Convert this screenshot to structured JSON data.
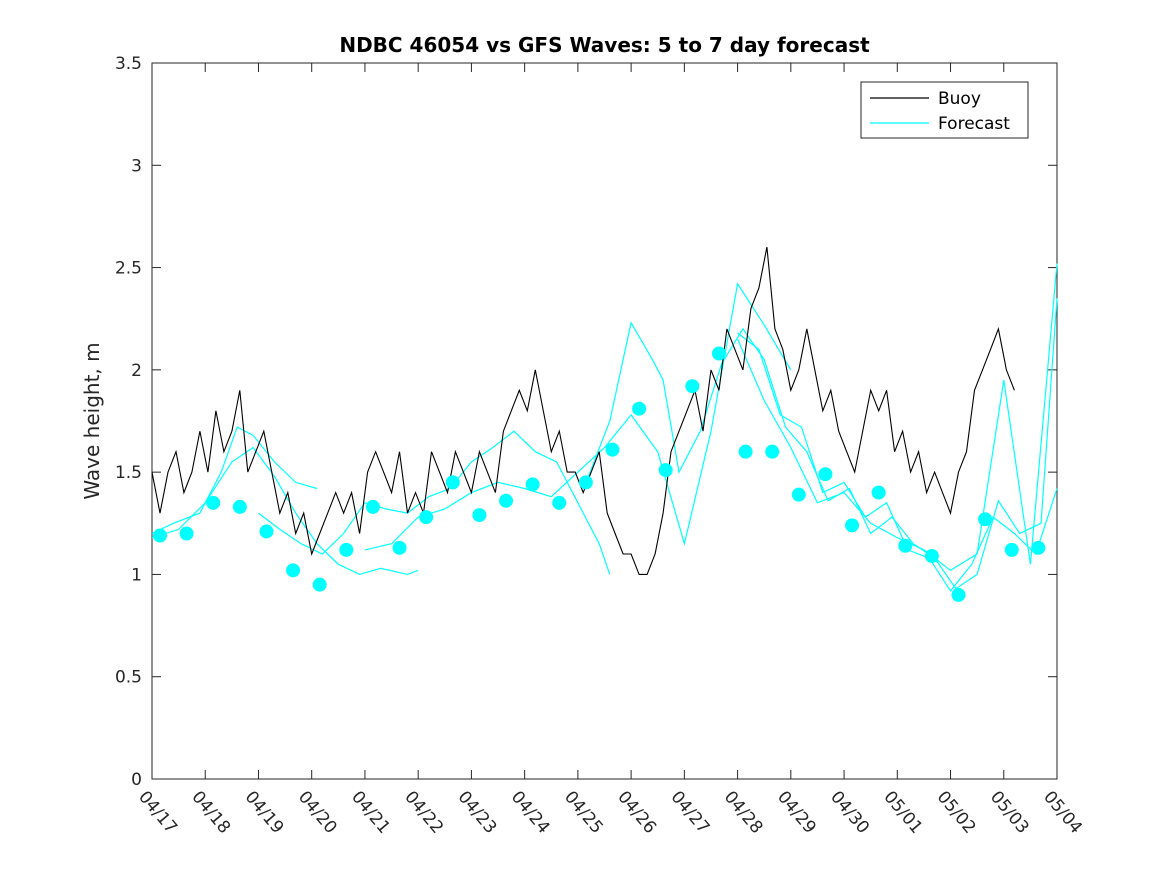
{
  "chart_data": {
    "type": "line",
    "title": "NDBC 46054 vs GFS Waves: 5 to 7 day forecast",
    "xlabel": "",
    "ylabel": "Wave height, m",
    "xlim": [
      0,
      17
    ],
    "ylim": [
      0,
      3.5
    ],
    "grid": false,
    "legend_position": "top-right",
    "colors": {
      "buoy": "#000000",
      "forecast": "#00ffff",
      "axis": "#262626"
    },
    "x_tick_labels": [
      "04/17",
      "04/18",
      "04/19",
      "04/20",
      "04/21",
      "04/22",
      "04/23",
      "04/24",
      "04/25",
      "04/26",
      "04/27",
      "04/28",
      "04/29",
      "04/30",
      "05/01",
      "05/02",
      "05/03",
      "05/04"
    ],
    "y_ticks": [
      0,
      0.5,
      1,
      1.5,
      2,
      2.5,
      3,
      3.5
    ],
    "y_tick_labels": [
      "0",
      "0.5",
      "1",
      "1.5",
      "2",
      "2.5",
      "3",
      "3.5"
    ],
    "series": [
      {
        "name": "Buoy",
        "x": [
          0,
          0.15,
          0.3,
          0.45,
          0.6,
          0.75,
          0.9,
          1.05,
          1.2,
          1.35,
          1.5,
          1.65,
          1.8,
          1.95,
          2.1,
          2.25,
          2.4,
          2.55,
          2.7,
          2.85,
          3.0,
          3.15,
          3.3,
          3.45,
          3.6,
          3.75,
          3.9,
          4.05,
          4.2,
          4.35,
          4.5,
          4.65,
          4.8,
          4.95,
          5.1,
          5.25,
          5.4,
          5.55,
          5.7,
          5.85,
          6.0,
          6.15,
          6.3,
          6.45,
          6.6,
          6.75,
          6.9,
          7.05,
          7.2,
          7.35,
          7.5,
          7.65,
          7.8,
          7.95,
          8.1,
          8.25,
          8.4,
          8.55,
          8.7,
          8.85,
          9.0,
          9.15,
          9.3,
          9.45,
          9.6,
          9.75,
          9.9,
          10.05,
          10.2,
          10.35,
          10.5,
          10.65,
          10.8,
          10.95,
          11.1,
          11.25,
          11.4,
          11.55,
          11.7,
          11.85,
          12.0,
          12.15,
          12.3,
          12.45,
          12.6,
          12.75,
          12.9,
          13.05,
          13.2,
          13.35,
          13.5,
          13.65,
          13.8,
          13.95,
          14.1,
          14.25,
          14.4,
          14.55,
          14.7,
          14.85,
          15.0,
          15.15,
          15.3,
          15.45,
          15.6,
          15.75,
          15.9,
          16.05,
          16.2
        ],
        "values": [
          1.5,
          1.3,
          1.5,
          1.6,
          1.4,
          1.5,
          1.7,
          1.5,
          1.8,
          1.6,
          1.7,
          1.9,
          1.5,
          1.6,
          1.7,
          1.5,
          1.3,
          1.4,
          1.2,
          1.3,
          1.1,
          1.2,
          1.3,
          1.4,
          1.3,
          1.4,
          1.2,
          1.5,
          1.6,
          1.5,
          1.4,
          1.6,
          1.3,
          1.4,
          1.3,
          1.6,
          1.5,
          1.4,
          1.6,
          1.5,
          1.4,
          1.6,
          1.5,
          1.4,
          1.7,
          1.8,
          1.9,
          1.8,
          2.0,
          1.8,
          1.6,
          1.7,
          1.5,
          1.5,
          1.4,
          1.5,
          1.6,
          1.3,
          1.2,
          1.1,
          1.1,
          1.0,
          1.0,
          1.1,
          1.3,
          1.6,
          1.7,
          1.8,
          1.9,
          1.7,
          2.0,
          1.9,
          2.2,
          2.1,
          2.0,
          2.3,
          2.4,
          2.6,
          2.2,
          2.1,
          1.9,
          2.0,
          2.2,
          2.0,
          1.8,
          1.9,
          1.7,
          1.6,
          1.5,
          1.7,
          1.9,
          1.8,
          1.9,
          1.6,
          1.7,
          1.5,
          1.6,
          1.4,
          1.5,
          1.4,
          1.3,
          1.5,
          1.6,
          1.9,
          2.0,
          2.1,
          2.2,
          2.0,
          1.9
        ]
      },
      {
        "name": "Forecast",
        "dot_x": [
          0.15,
          0.65,
          1.15,
          1.65,
          2.15,
          2.65,
          3.15,
          3.65,
          4.15,
          4.65,
          5.15,
          5.65,
          6.15,
          6.65,
          7.15,
          7.65,
          8.15,
          8.65,
          9.15,
          9.65,
          10.15,
          10.65,
          11.15,
          11.65,
          12.15,
          12.65,
          13.15,
          13.65,
          14.15,
          14.65,
          15.15,
          15.65,
          16.15,
          16.65
        ],
        "dot_values": [
          1.19,
          1.2,
          1.35,
          1.33,
          1.21,
          1.02,
          0.95,
          1.12,
          1.33,
          1.13,
          1.28,
          1.45,
          1.29,
          1.36,
          1.44,
          1.35,
          1.45,
          1.61,
          1.81,
          1.51,
          1.92,
          2.08,
          1.6,
          1.6,
          1.39,
          1.49,
          1.24,
          1.4,
          1.14,
          1.09,
          0.9,
          1.27,
          1.12,
          1.13
        ],
        "runs": [
          {
            "x": [
              0,
              0.4,
              0.9,
              1.3,
              1.6,
              1.9,
              2.3,
              2.7,
              3.1
            ],
            "values": [
              1.2,
              1.25,
              1.3,
              1.5,
              1.72,
              1.68,
              1.55,
              1.45,
              1.42
            ]
          },
          {
            "x": [
              0,
              0.5,
              1.0,
              1.5,
              1.9,
              2.3,
              2.7,
              3.1,
              3.5,
              3.9,
              4.3,
              4.8,
              5.0
            ],
            "values": [
              1.18,
              1.22,
              1.35,
              1.55,
              1.62,
              1.48,
              1.3,
              1.15,
              1.05,
              1.0,
              1.03,
              1.0,
              1.02
            ]
          },
          {
            "x": [
              2.0,
              2.4,
              2.8,
              3.2,
              3.6,
              4.0,
              4.4,
              4.8,
              5.2,
              5.6,
              6.0,
              6.4,
              6.8,
              7.2,
              7.6,
              8.0,
              8.4,
              8.6
            ],
            "values": [
              1.3,
              1.22,
              1.15,
              1.1,
              1.2,
              1.35,
              1.32,
              1.3,
              1.38,
              1.42,
              1.55,
              1.62,
              1.7,
              1.6,
              1.55,
              1.35,
              1.15,
              1.0
            ]
          },
          {
            "x": [
              4.0,
              4.5,
              5.0,
              5.5,
              6.0,
              6.5,
              7.0,
              7.5,
              8.0,
              8.5,
              9.0,
              9.5,
              10.0,
              10.5,
              11.0,
              11.5,
              12.0
            ],
            "values": [
              1.12,
              1.15,
              1.28,
              1.32,
              1.4,
              1.45,
              1.42,
              1.38,
              1.5,
              1.62,
              1.78,
              1.6,
              1.15,
              1.7,
              2.42,
              2.22,
              2.0
            ]
          },
          {
            "x": [
              8.2,
              8.6,
              9.0,
              9.4,
              9.6,
              9.9,
              10.3,
              10.7,
              11.1,
              11.5,
              11.9,
              12.3,
              12.7,
              13.1,
              13.5,
              13.9,
              14.3,
              14.7,
              15.1,
              15.5,
              15.9,
              16.3,
              16.7,
              17.0
            ],
            "values": [
              1.48,
              1.75,
              2.23,
              2.05,
              1.95,
              1.5,
              1.7,
              2.03,
              2.2,
              2.05,
              1.72,
              1.6,
              1.36,
              1.42,
              1.2,
              1.28,
              1.15,
              1.08,
              0.93,
              1.0,
              1.36,
              1.2,
              1.25,
              2.35
            ]
          },
          {
            "x": [
              11.0,
              11.4,
              11.8,
              12.2,
              12.6,
              13.0,
              13.4,
              13.8,
              14.2,
              14.6,
              15.0,
              15.4,
              15.8,
              16.2,
              16.6,
              17.0
            ],
            "values": [
              2.18,
              2.1,
              1.78,
              1.72,
              1.4,
              1.45,
              1.28,
              1.35,
              1.12,
              1.08,
              0.92,
              1.05,
              1.28,
              1.2,
              1.1,
              1.42
            ]
          },
          {
            "x": [
              11.0,
              11.5,
              12.0,
              12.5,
              13.0,
              13.5,
              14.0,
              14.5,
              15.0,
              15.5,
              16.0,
              16.5,
              17.0
            ],
            "values": [
              2.15,
              1.85,
              1.62,
              1.35,
              1.4,
              1.25,
              1.18,
              1.12,
              1.02,
              1.1,
              1.95,
              1.05,
              2.52
            ]
          }
        ]
      }
    ]
  }
}
